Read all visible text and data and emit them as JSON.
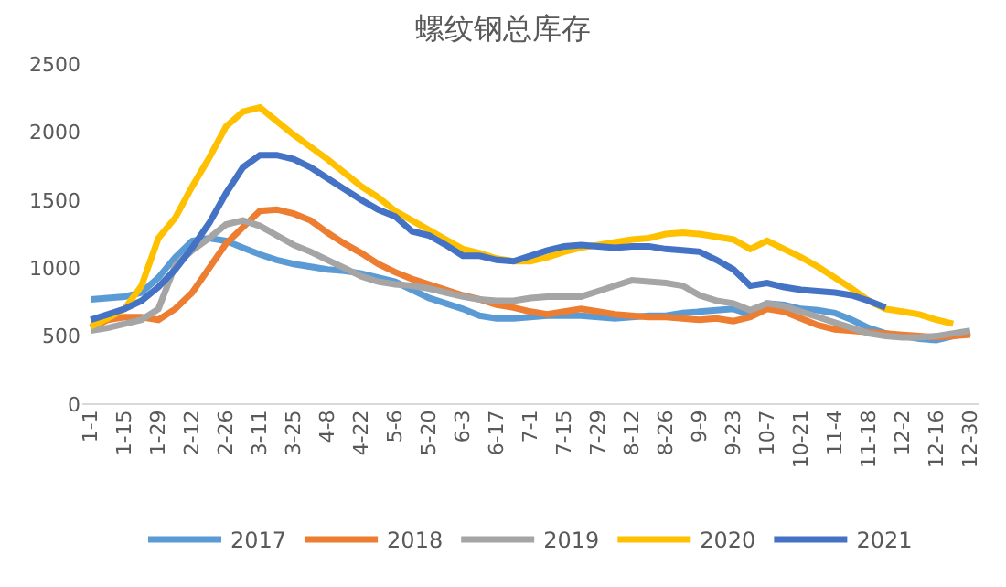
{
  "chart_data": {
    "type": "line",
    "title": "螺纹钢总库存",
    "categories": [
      "1-1",
      null,
      "1-15",
      null,
      "1-29",
      null,
      "2-12",
      null,
      "2-26",
      null,
      "3-11",
      null,
      "3-25",
      null,
      "4-8",
      null,
      "4-22",
      null,
      "5-6",
      null,
      "5-20",
      null,
      "6-3",
      null,
      "6-17",
      null,
      "7-1",
      null,
      "7-15",
      null,
      "7-29",
      null,
      "8-12",
      null,
      "8-26",
      null,
      "9-9",
      null,
      "9-23",
      null,
      "10-7",
      null,
      "10-21",
      null,
      "11-4",
      null,
      "11-18",
      null,
      "12-2",
      null,
      "12-16",
      null,
      "12-30"
    ],
    "ylim": [
      0,
      2500
    ],
    "yticks": [
      0,
      500,
      1000,
      1500,
      2000,
      2500
    ],
    "legend": "bottom",
    "marker": "none",
    "line_style": "solid",
    "series": [
      {
        "name": "2017",
        "color": "#5b9bd5",
        "values": [
          770,
          780,
          790,
          820,
          930,
          1080,
          1200,
          1220,
          1200,
          1150,
          1100,
          1060,
          1030,
          1010,
          990,
          980,
          960,
          930,
          900,
          840,
          780,
          740,
          700,
          650,
          630,
          630,
          640,
          650,
          650,
          650,
          640,
          630,
          640,
          650,
          650,
          670,
          680,
          690,
          700,
          660,
          740,
          730,
          700,
          690,
          670,
          620,
          560,
          520,
          500,
          480,
          470,
          500,
          530
        ]
      },
      {
        "name": "2018",
        "color": "#ed7d31",
        "values": [
          560,
          620,
          640,
          640,
          620,
          700,
          820,
          1000,
          1180,
          1300,
          1420,
          1430,
          1400,
          1350,
          1260,
          1180,
          1110,
          1030,
          970,
          920,
          880,
          840,
          800,
          770,
          730,
          710,
          680,
          660,
          680,
          700,
          680,
          660,
          650,
          640,
          640,
          630,
          620,
          630,
          610,
          640,
          700,
          680,
          630,
          580,
          550,
          540,
          530,
          520,
          510,
          500,
          490,
          500,
          510
        ]
      },
      {
        "name": "2019",
        "color": "#a5a5a5",
        "values": [
          540,
          560,
          590,
          620,
          700,
          1020,
          1130,
          1220,
          1320,
          1350,
          1310,
          1240,
          1170,
          1120,
          1060,
          1000,
          940,
          900,
          880,
          870,
          850,
          820,
          790,
          770,
          760,
          760,
          780,
          790,
          790,
          790,
          830,
          870,
          910,
          900,
          890,
          870,
          800,
          760,
          740,
          690,
          740,
          720,
          680,
          640,
          600,
          560,
          520,
          500,
          490,
          490,
          500,
          520,
          540
        ]
      },
      {
        "name": "2020",
        "color": "#ffc000",
        "values": [
          570,
          630,
          700,
          870,
          1220,
          1370,
          1600,
          1810,
          2040,
          2150,
          2180,
          2080,
          1980,
          1890,
          1800,
          1700,
          1600,
          1520,
          1420,
          1350,
          1280,
          1210,
          1140,
          1110,
          1070,
          1050,
          1050,
          1080,
          1120,
          1150,
          1170,
          1190,
          1210,
          1220,
          1250,
          1260,
          1250,
          1230,
          1210,
          1140,
          1200,
          1140,
          1080,
          1010,
          930,
          850,
          760,
          700,
          680,
          660,
          620,
          590,
          null
        ]
      },
      {
        "name": "2021",
        "color": "#4472c4",
        "values": [
          620,
          660,
          700,
          760,
          860,
          990,
          1150,
          1330,
          1550,
          1740,
          1830,
          1830,
          1800,
          1740,
          1660,
          1580,
          1500,
          1430,
          1380,
          1270,
          1240,
          1170,
          1090,
          1090,
          1060,
          1050,
          1090,
          1130,
          1160,
          1170,
          1160,
          1150,
          1160,
          1160,
          1140,
          1130,
          1120,
          1060,
          990,
          870,
          890,
          860,
          840,
          830,
          820,
          800,
          760,
          710,
          null,
          null,
          null,
          null,
          null
        ]
      }
    ]
  }
}
